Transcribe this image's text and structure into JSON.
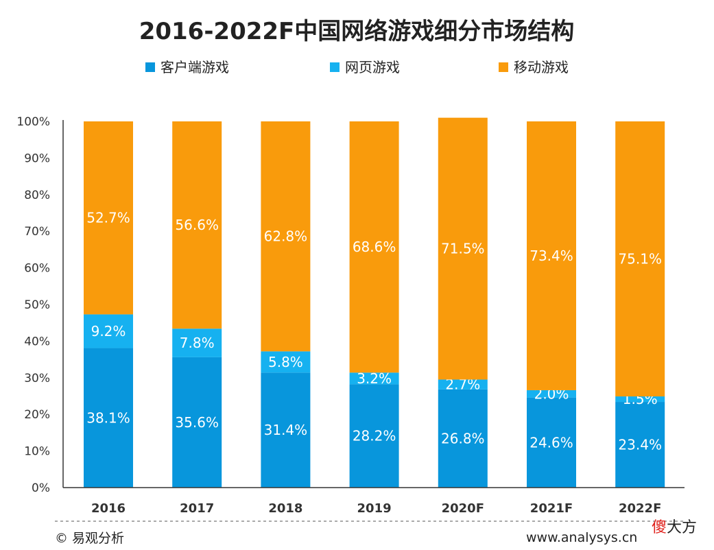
{
  "chart_data": {
    "type": "bar",
    "stacked": true,
    "title": "2016-2022F中国网络游戏细分市场结构",
    "categories": [
      "2016",
      "2017",
      "2018",
      "2019",
      "2020F",
      "2021F",
      "2022F"
    ],
    "series": [
      {
        "name": "客户端游戏",
        "color": "#0896dc",
        "values": [
          38.1,
          35.6,
          31.4,
          28.2,
          26.8,
          24.6,
          23.4
        ],
        "labels": [
          "38.1%",
          "35.6%",
          "31.4%",
          "28.2%",
          "26.8%",
          "24.6%",
          "23.4%"
        ]
      },
      {
        "name": "网页游戏",
        "color": "#16b1f0",
        "values": [
          9.2,
          7.8,
          5.8,
          3.2,
          2.7,
          2.0,
          1.5
        ],
        "labels": [
          "9.2%",
          "7.8%",
          "5.8%",
          "3.2%",
          "2.7%",
          "2.0%",
          "1.5%"
        ]
      },
      {
        "name": "移动游戏",
        "color": "#f99b0c",
        "values": [
          52.7,
          56.6,
          62.8,
          68.6,
          71.5,
          73.4,
          75.1
        ],
        "labels": [
          "52.7%",
          "56.6%",
          "62.8%",
          "68.6%",
          "71.5%",
          "73.4%",
          "75.1%"
        ]
      }
    ],
    "yticks": [
      "0%",
      "10%",
      "20%",
      "30%",
      "40%",
      "50%",
      "60%",
      "70%",
      "80%",
      "90%",
      "100%"
    ],
    "ylim": [
      0,
      100
    ],
    "legend_position": "top",
    "grid": false
  },
  "footer": {
    "source": "© 易观分析",
    "website": "www.analysys.cn",
    "badge": "傻大方"
  }
}
